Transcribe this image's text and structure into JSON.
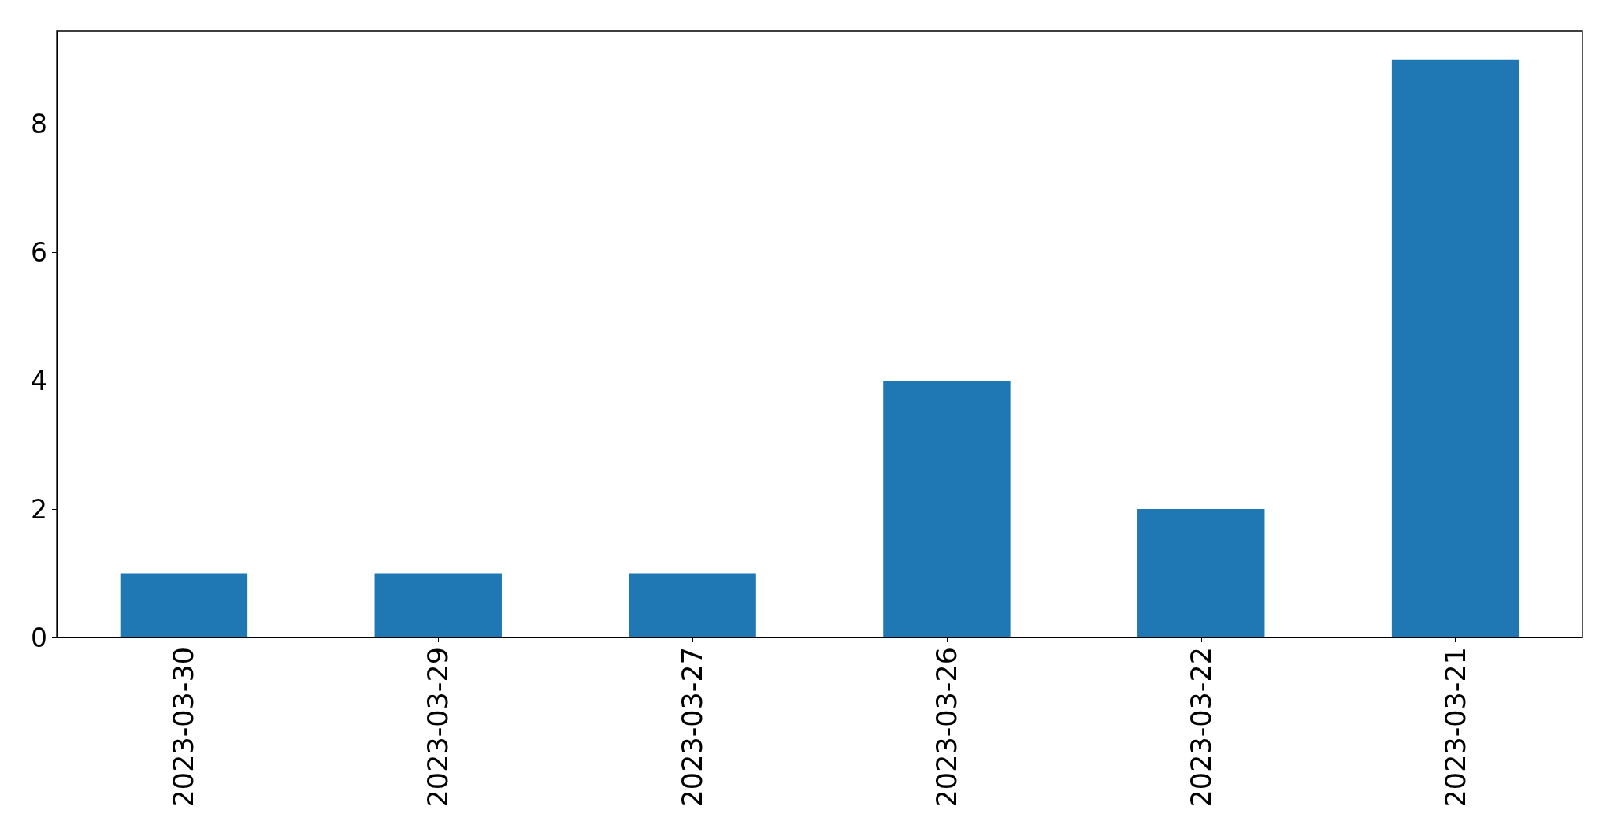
{
  "chart_data": {
    "type": "bar",
    "categories": [
      "2023-03-30",
      "2023-03-29",
      "2023-03-27",
      "2023-03-26",
      "2023-03-22",
      "2023-03-21"
    ],
    "values": [
      1,
      1,
      1,
      4,
      2,
      9
    ],
    "color": "#1f77b4",
    "ylim": [
      0,
      9.45
    ],
    "yticks": [
      0,
      2,
      4,
      6,
      8
    ]
  }
}
